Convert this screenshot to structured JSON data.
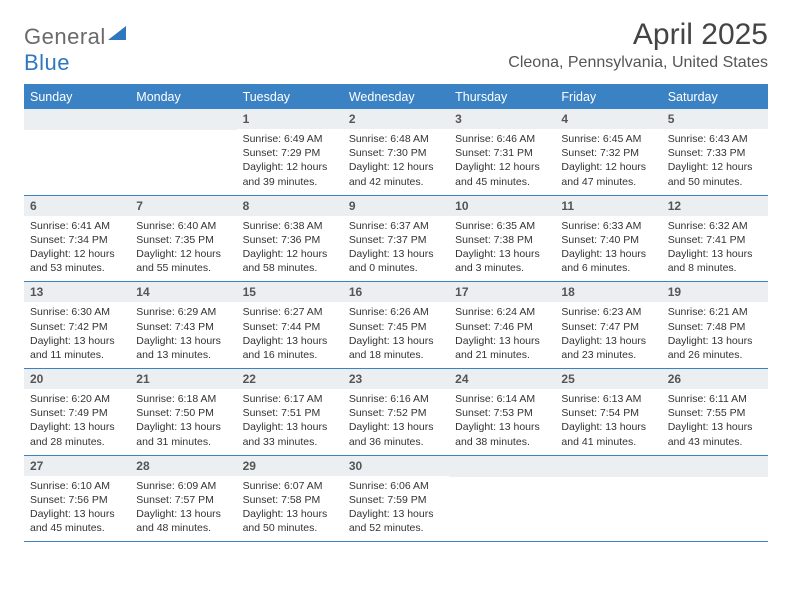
{
  "logo": {
    "text1": "General",
    "text2": "Blue"
  },
  "header": {
    "month_title": "April 2025",
    "location": "Cleona, Pennsylvania, United States"
  },
  "colors": {
    "accent": "#3b82c4",
    "header_bg": "#3b82c4",
    "daynum_bg": "#eceff1",
    "text": "#333333",
    "muted": "#555555"
  },
  "days_of_week": [
    "Sunday",
    "Monday",
    "Tuesday",
    "Wednesday",
    "Thursday",
    "Friday",
    "Saturday"
  ],
  "weeks": [
    [
      {
        "n": "",
        "sunrise": "",
        "sunset": "",
        "daylight": ""
      },
      {
        "n": "",
        "sunrise": "",
        "sunset": "",
        "daylight": ""
      },
      {
        "n": "1",
        "sunrise": "Sunrise: 6:49 AM",
        "sunset": "Sunset: 7:29 PM",
        "daylight": "Daylight: 12 hours and 39 minutes."
      },
      {
        "n": "2",
        "sunrise": "Sunrise: 6:48 AM",
        "sunset": "Sunset: 7:30 PM",
        "daylight": "Daylight: 12 hours and 42 minutes."
      },
      {
        "n": "3",
        "sunrise": "Sunrise: 6:46 AM",
        "sunset": "Sunset: 7:31 PM",
        "daylight": "Daylight: 12 hours and 45 minutes."
      },
      {
        "n": "4",
        "sunrise": "Sunrise: 6:45 AM",
        "sunset": "Sunset: 7:32 PM",
        "daylight": "Daylight: 12 hours and 47 minutes."
      },
      {
        "n": "5",
        "sunrise": "Sunrise: 6:43 AM",
        "sunset": "Sunset: 7:33 PM",
        "daylight": "Daylight: 12 hours and 50 minutes."
      }
    ],
    [
      {
        "n": "6",
        "sunrise": "Sunrise: 6:41 AM",
        "sunset": "Sunset: 7:34 PM",
        "daylight": "Daylight: 12 hours and 53 minutes."
      },
      {
        "n": "7",
        "sunrise": "Sunrise: 6:40 AM",
        "sunset": "Sunset: 7:35 PM",
        "daylight": "Daylight: 12 hours and 55 minutes."
      },
      {
        "n": "8",
        "sunrise": "Sunrise: 6:38 AM",
        "sunset": "Sunset: 7:36 PM",
        "daylight": "Daylight: 12 hours and 58 minutes."
      },
      {
        "n": "9",
        "sunrise": "Sunrise: 6:37 AM",
        "sunset": "Sunset: 7:37 PM",
        "daylight": "Daylight: 13 hours and 0 minutes."
      },
      {
        "n": "10",
        "sunrise": "Sunrise: 6:35 AM",
        "sunset": "Sunset: 7:38 PM",
        "daylight": "Daylight: 13 hours and 3 minutes."
      },
      {
        "n": "11",
        "sunrise": "Sunrise: 6:33 AM",
        "sunset": "Sunset: 7:40 PM",
        "daylight": "Daylight: 13 hours and 6 minutes."
      },
      {
        "n": "12",
        "sunrise": "Sunrise: 6:32 AM",
        "sunset": "Sunset: 7:41 PM",
        "daylight": "Daylight: 13 hours and 8 minutes."
      }
    ],
    [
      {
        "n": "13",
        "sunrise": "Sunrise: 6:30 AM",
        "sunset": "Sunset: 7:42 PM",
        "daylight": "Daylight: 13 hours and 11 minutes."
      },
      {
        "n": "14",
        "sunrise": "Sunrise: 6:29 AM",
        "sunset": "Sunset: 7:43 PM",
        "daylight": "Daylight: 13 hours and 13 minutes."
      },
      {
        "n": "15",
        "sunrise": "Sunrise: 6:27 AM",
        "sunset": "Sunset: 7:44 PM",
        "daylight": "Daylight: 13 hours and 16 minutes."
      },
      {
        "n": "16",
        "sunrise": "Sunrise: 6:26 AM",
        "sunset": "Sunset: 7:45 PM",
        "daylight": "Daylight: 13 hours and 18 minutes."
      },
      {
        "n": "17",
        "sunrise": "Sunrise: 6:24 AM",
        "sunset": "Sunset: 7:46 PM",
        "daylight": "Daylight: 13 hours and 21 minutes."
      },
      {
        "n": "18",
        "sunrise": "Sunrise: 6:23 AM",
        "sunset": "Sunset: 7:47 PM",
        "daylight": "Daylight: 13 hours and 23 minutes."
      },
      {
        "n": "19",
        "sunrise": "Sunrise: 6:21 AM",
        "sunset": "Sunset: 7:48 PM",
        "daylight": "Daylight: 13 hours and 26 minutes."
      }
    ],
    [
      {
        "n": "20",
        "sunrise": "Sunrise: 6:20 AM",
        "sunset": "Sunset: 7:49 PM",
        "daylight": "Daylight: 13 hours and 28 minutes."
      },
      {
        "n": "21",
        "sunrise": "Sunrise: 6:18 AM",
        "sunset": "Sunset: 7:50 PM",
        "daylight": "Daylight: 13 hours and 31 minutes."
      },
      {
        "n": "22",
        "sunrise": "Sunrise: 6:17 AM",
        "sunset": "Sunset: 7:51 PM",
        "daylight": "Daylight: 13 hours and 33 minutes."
      },
      {
        "n": "23",
        "sunrise": "Sunrise: 6:16 AM",
        "sunset": "Sunset: 7:52 PM",
        "daylight": "Daylight: 13 hours and 36 minutes."
      },
      {
        "n": "24",
        "sunrise": "Sunrise: 6:14 AM",
        "sunset": "Sunset: 7:53 PM",
        "daylight": "Daylight: 13 hours and 38 minutes."
      },
      {
        "n": "25",
        "sunrise": "Sunrise: 6:13 AM",
        "sunset": "Sunset: 7:54 PM",
        "daylight": "Daylight: 13 hours and 41 minutes."
      },
      {
        "n": "26",
        "sunrise": "Sunrise: 6:11 AM",
        "sunset": "Sunset: 7:55 PM",
        "daylight": "Daylight: 13 hours and 43 minutes."
      }
    ],
    [
      {
        "n": "27",
        "sunrise": "Sunrise: 6:10 AM",
        "sunset": "Sunset: 7:56 PM",
        "daylight": "Daylight: 13 hours and 45 minutes."
      },
      {
        "n": "28",
        "sunrise": "Sunrise: 6:09 AM",
        "sunset": "Sunset: 7:57 PM",
        "daylight": "Daylight: 13 hours and 48 minutes."
      },
      {
        "n": "29",
        "sunrise": "Sunrise: 6:07 AM",
        "sunset": "Sunset: 7:58 PM",
        "daylight": "Daylight: 13 hours and 50 minutes."
      },
      {
        "n": "30",
        "sunrise": "Sunrise: 6:06 AM",
        "sunset": "Sunset: 7:59 PM",
        "daylight": "Daylight: 13 hours and 52 minutes."
      },
      {
        "n": "",
        "sunrise": "",
        "sunset": "",
        "daylight": ""
      },
      {
        "n": "",
        "sunrise": "",
        "sunset": "",
        "daylight": ""
      },
      {
        "n": "",
        "sunrise": "",
        "sunset": "",
        "daylight": ""
      }
    ]
  ]
}
